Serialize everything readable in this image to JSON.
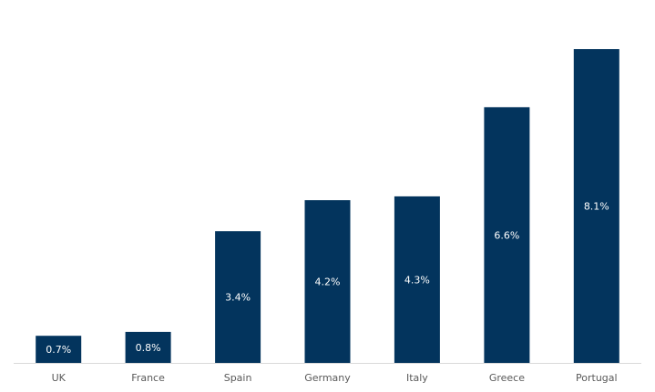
{
  "chart_data": {
    "type": "bar",
    "categories": [
      "UK",
      "France",
      "Spain",
      "Germany",
      "Italy",
      "Greece",
      "Portugal"
    ],
    "values": [
      0.7,
      0.8,
      3.4,
      4.2,
      4.3,
      6.6,
      8.1
    ],
    "data_labels": [
      "0.7%",
      "0.8%",
      "3.4%",
      "4.2%",
      "4.3%",
      "6.6%",
      "8.1%"
    ],
    "title": "",
    "xlabel": "",
    "ylabel": "",
    "ylim": [
      0,
      8.1
    ],
    "grid": false,
    "legend": "none",
    "colors": {
      "bar": "#03345D",
      "bar_label": "#ffffff",
      "tick_label": "#595959",
      "axis_line": "#D9D9D9"
    }
  }
}
